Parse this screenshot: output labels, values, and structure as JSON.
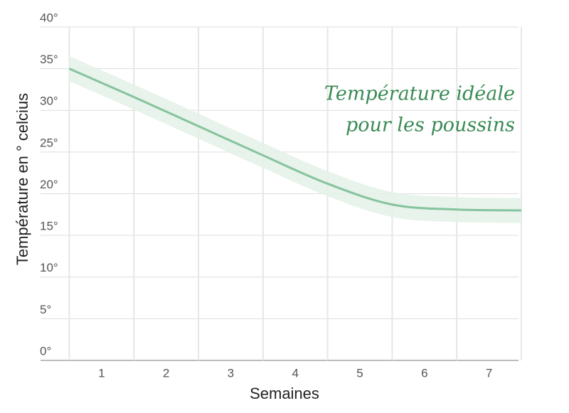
{
  "chart_data": {
    "type": "line",
    "annotation": [
      "Température idéale",
      "pour les poussins"
    ],
    "x_label": "Semaines",
    "y_label": "Température en ° celcius",
    "xlim": [
      0,
      7.5
    ],
    "xticks": [
      1,
      2,
      3,
      4,
      5,
      6,
      7
    ],
    "ylim": [
      0,
      40
    ],
    "yticks": [
      {
        "value": 0,
        "label": "0°"
      },
      {
        "value": 5,
        "label": "5°"
      },
      {
        "value": 10,
        "label": "10°"
      },
      {
        "value": 15,
        "label": "15°"
      },
      {
        "value": 20,
        "label": "20°"
      },
      {
        "value": 25,
        "label": "25°"
      },
      {
        "value": 30,
        "label": "30°"
      },
      {
        "value": 35,
        "label": "35°"
      },
      {
        "value": 40,
        "label": "40°"
      }
    ],
    "grid": true,
    "x": [
      0.5,
      1.5,
      2.5,
      3.5,
      4.5,
      5.5,
      6.5,
      7.5
    ],
    "series": [
      {
        "color": "#86c39e",
        "values": [
          35,
          31.6,
          28.1,
          24.6,
          21.2,
          18.7,
          18.1,
          18
        ]
      }
    ],
    "band": {
      "color": "#e3f1e7",
      "lower": [
        33.5,
        30.1,
        26.6,
        23.1,
        19.7,
        17.2,
        16.6,
        16.5
      ],
      "upper": [
        36.5,
        33.1,
        29.6,
        26.1,
        22.7,
        20.2,
        19.6,
        19.5
      ]
    }
  }
}
